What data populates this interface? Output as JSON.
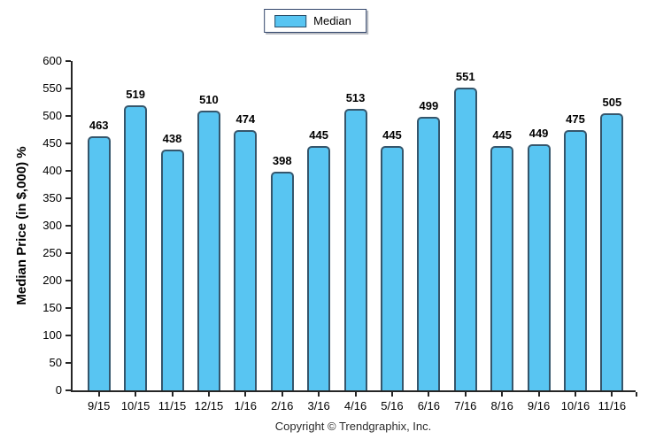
{
  "chart_data": {
    "type": "bar",
    "title": "",
    "xlabel": "",
    "ylabel": "Median Price (in $,000) %",
    "legend": [
      "Median"
    ],
    "legend_position": "top-center",
    "grid": false,
    "categories": [
      "9/15",
      "10/15",
      "11/15",
      "12/15",
      "1/16",
      "2/16",
      "3/16",
      "4/16",
      "5/16",
      "6/16",
      "7/16",
      "8/16",
      "9/16",
      "10/16",
      "11/16"
    ],
    "values": [
      463,
      519,
      438,
      510,
      474,
      398,
      445,
      513,
      445,
      499,
      551,
      445,
      449,
      475,
      505
    ],
    "ylim": [
      0,
      600
    ],
    "ytick_step": 50,
    "yticks": [
      0,
      50,
      100,
      150,
      200,
      250,
      300,
      350,
      400,
      450,
      500,
      550,
      600
    ],
    "bar_fill_color": "#58c5f2",
    "bar_border_color": "#35566c",
    "axis_color": "#262626"
  },
  "footer": {
    "copyright": "Copyright © Trendgraphix, Inc."
  }
}
